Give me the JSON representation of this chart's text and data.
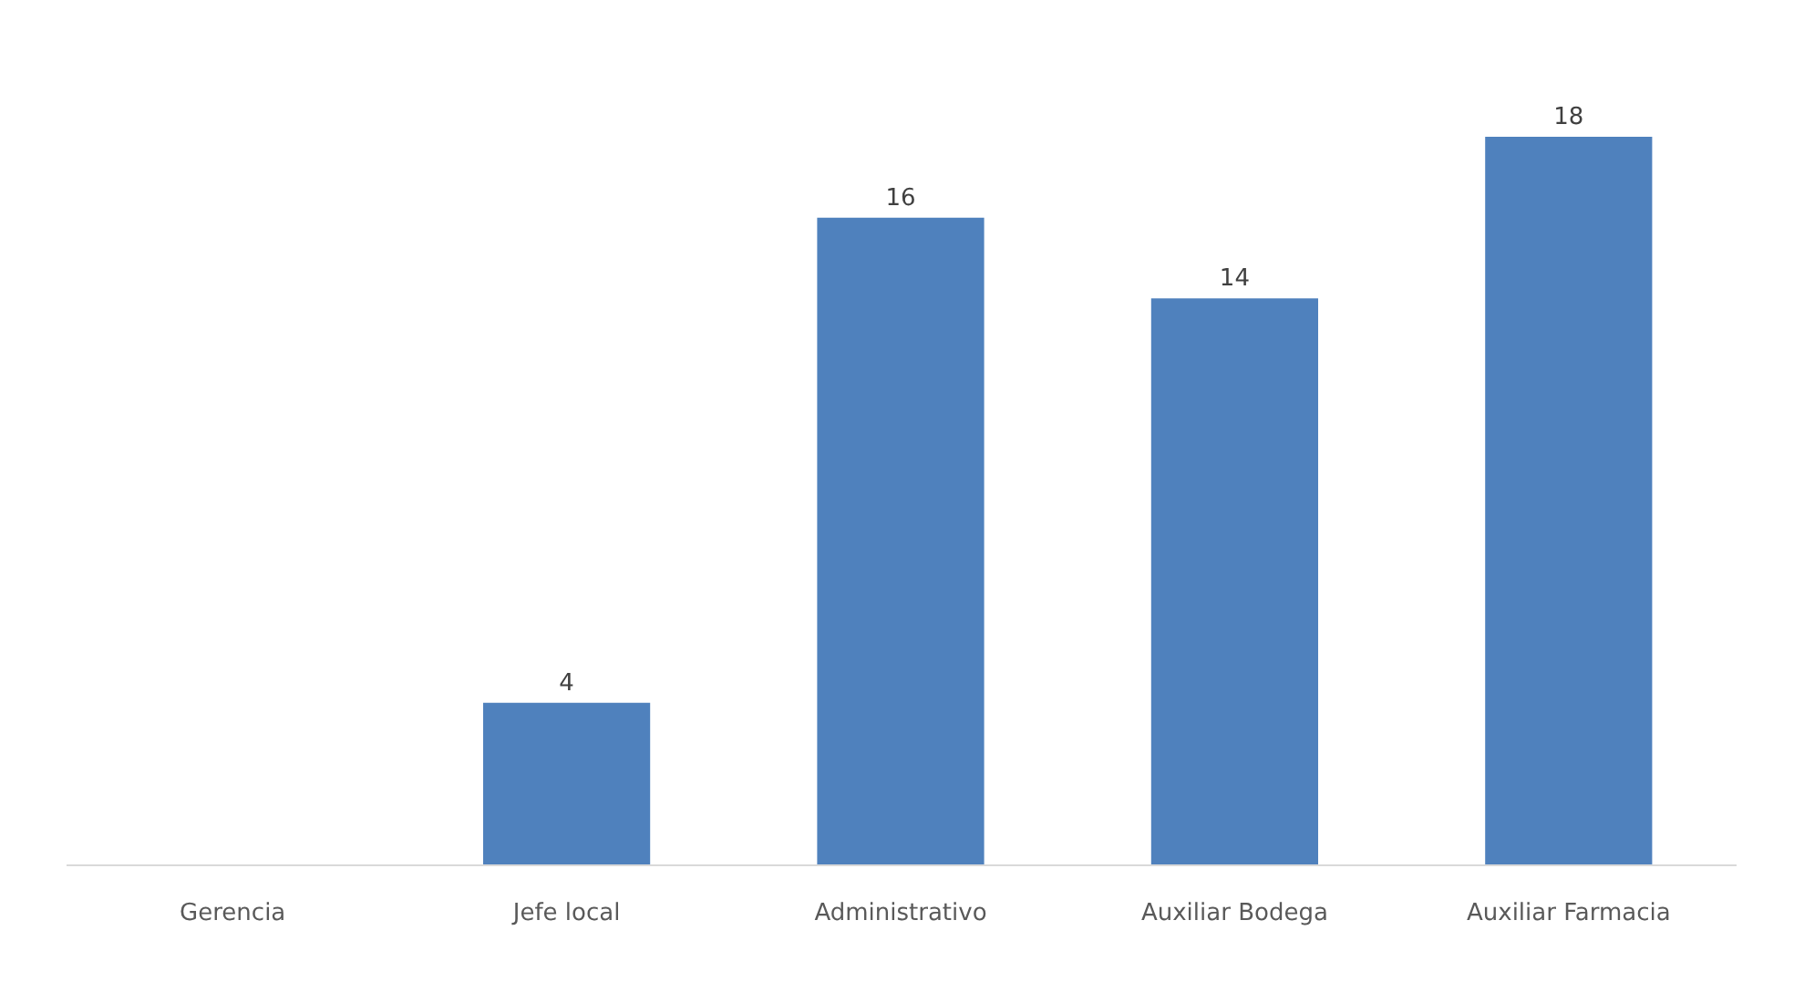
{
  "chart_data": {
    "type": "bar",
    "categories": [
      "Gerencia",
      "Jefe local",
      "Administrativo",
      "Auxiliar Bodega",
      "Auxiliar Farmacia"
    ],
    "values": [
      null,
      4,
      16,
      14,
      18
    ],
    "color": "#4f81bd",
    "tick_labels": "x",
    "grid": false,
    "data_labels": true
  }
}
